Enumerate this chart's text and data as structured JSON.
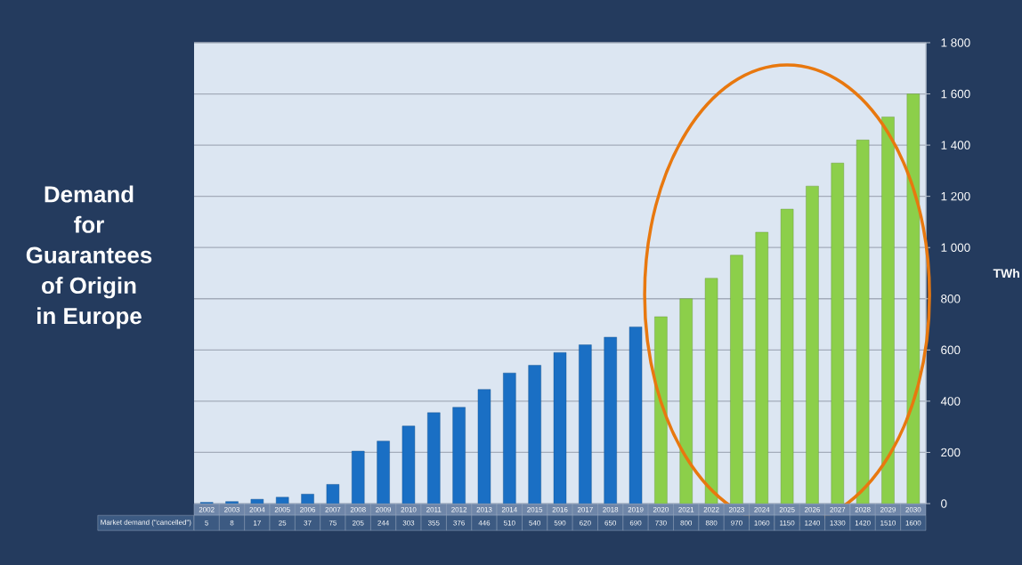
{
  "chart_data": {
    "type": "bar",
    "title": "Demand for Guarantees of Origin in Europe",
    "ylabel": "TWh",
    "categories": [
      "2002",
      "2003",
      "2004",
      "2005",
      "2006",
      "2007",
      "2008",
      "2009",
      "2010",
      "2011",
      "2012",
      "2013",
      "2014",
      "2015",
      "2016",
      "2017",
      "2018",
      "2019",
      "2020",
      "2021",
      "2022",
      "2023",
      "2024",
      "2025",
      "2026",
      "2027",
      "2028",
      "2029",
      "2030"
    ],
    "series": [
      {
        "name": "Market demand (\"cancelled\")",
        "values": [
          5,
          8,
          17,
          25,
          37,
          75,
          205,
          244,
          303,
          355,
          376,
          446,
          510,
          540,
          590,
          620,
          650,
          690,
          730,
          800,
          880,
          970,
          1060,
          1150,
          1240,
          1330,
          1420,
          1510,
          1600
        ],
        "colors": [
          "#1a6fc4",
          "#1a6fc4",
          "#1a6fc4",
          "#1a6fc4",
          "#1a6fc4",
          "#1a6fc4",
          "#1a6fc4",
          "#1a6fc4",
          "#1a6fc4",
          "#1a6fc4",
          "#1a6fc4",
          "#1a6fc4",
          "#1a6fc4",
          "#1a6fc4",
          "#1a6fc4",
          "#1a6fc4",
          "#1a6fc4",
          "#1a6fc4",
          "#8ccf4a",
          "#8ccf4a",
          "#8ccf4a",
          "#8ccf4a",
          "#8ccf4a",
          "#8ccf4a",
          "#8ccf4a",
          "#8ccf4a",
          "#8ccf4a",
          "#8ccf4a",
          "#8ccf4a"
        ]
      }
    ],
    "ylim": [
      0,
      1800
    ],
    "yticks": [
      0,
      200,
      400,
      600,
      800,
      {
        "value": 1000,
        "label": "1 000"
      },
      {
        "value": 1200,
        "label": "1 200"
      },
      {
        "value": 1400,
        "label": "1 400"
      },
      {
        "value": 1600,
        "label": "1 600"
      },
      {
        "value": 1800,
        "label": "1 800"
      }
    ],
    "grid": "y",
    "data_labels": true
  }
}
